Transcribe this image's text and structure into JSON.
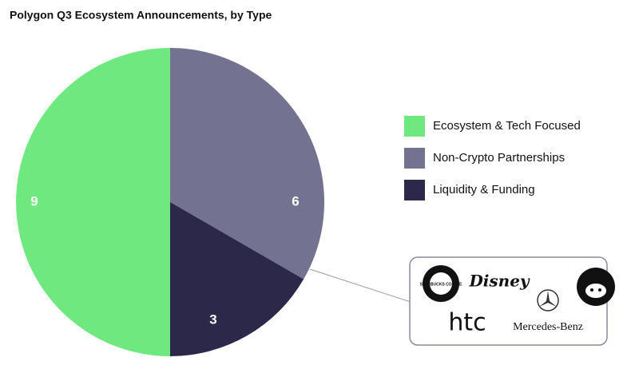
{
  "chart_data": {
    "type": "pie",
    "title": "Polygon Q3 Ecosystem Announcements, by Type",
    "categories": [
      "Ecosystem & Tech Focused",
      "Non-Crypto Partnerships",
      "Liquidity & Funding"
    ],
    "values": [
      9,
      6,
      3
    ],
    "colors": [
      "#6ee87f",
      "#737391",
      "#2b2849"
    ],
    "annotation_logos": [
      "STARBUCKS COFFEE",
      "Disney",
      "htc",
      "Mercedes-Benz"
    ]
  }
}
